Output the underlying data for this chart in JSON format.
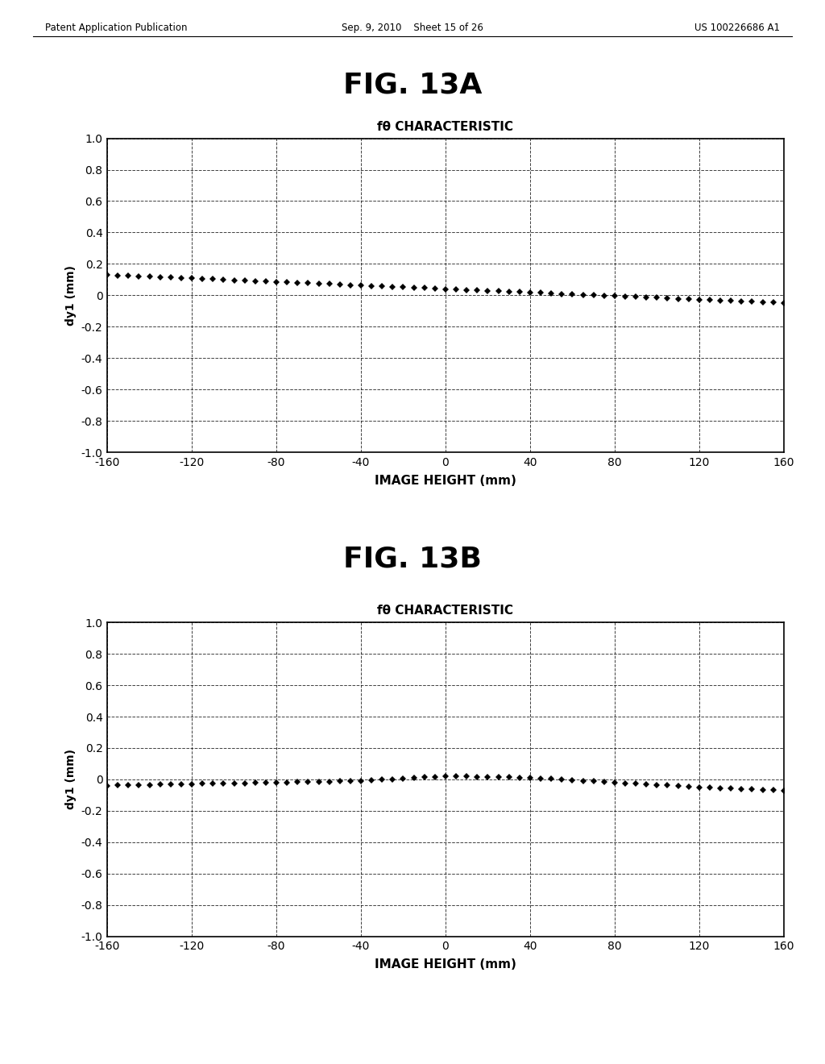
{
  "fig_title_a": "FIG. 13A",
  "fig_title_b": "FIG. 13B",
  "chart_title": "fθ CHARACTERISTIC",
  "xlabel": "IMAGE HEIGHT (mm)",
  "ylabel": "dy1 (mm)",
  "xlim": [
    -160,
    160
  ],
  "ylim": [
    -1.0,
    1.0
  ],
  "xticks": [
    -160,
    -120,
    -80,
    -40,
    0,
    40,
    80,
    120,
    160
  ],
  "yticks": [
    -1.0,
    -0.8,
    -0.6,
    -0.4,
    -0.2,
    0.0,
    0.2,
    0.4,
    0.6,
    0.8,
    1.0
  ],
  "background_color": "#ffffff",
  "header_text_left": "Patent Application Publication",
  "header_text_mid": "Sep. 9, 2010    Sheet 15 of 26",
  "header_text_right": "US 100226686 A1"
}
